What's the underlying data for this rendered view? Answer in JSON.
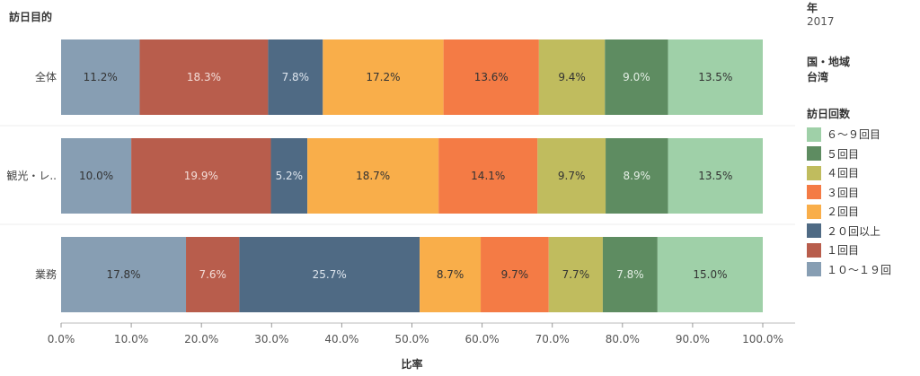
{
  "row_axis_title": "訪日目的",
  "filters": [
    {
      "title": "年",
      "value": "2017"
    },
    {
      "title": "国・地域",
      "value": "台湾"
    }
  ],
  "legend": {
    "title": "訪日回数",
    "items": [
      {
        "label": "６～９回目",
        "color": "#9fd0a8"
      },
      {
        "label": "５回目",
        "color": "#5e8c61"
      },
      {
        "label": "４回目",
        "color": "#c0bc5e"
      },
      {
        "label": "３回目",
        "color": "#f47b45"
      },
      {
        "label": "２回目",
        "color": "#f9ae4a"
      },
      {
        "label": "２０回以上",
        "color": "#4f6a84"
      },
      {
        "label": "１回目",
        "color": "#b85d4c"
      },
      {
        "label": "１０～１９回",
        "color": "#879eb3"
      }
    ]
  },
  "chart_data": {
    "type": "bar",
    "orientation": "horizontal",
    "stacked": true,
    "xlabel": "比率",
    "xlim": [
      0,
      100
    ],
    "x_ticks": [
      "0.0%",
      "10.0%",
      "20.0%",
      "30.0%",
      "40.0%",
      "50.0%",
      "60.0%",
      "70.0%",
      "80.0%",
      "90.0%",
      "100.0%"
    ],
    "categories": [
      "全体",
      "観光・レ..",
      "業務"
    ],
    "series": [
      {
        "name": "１０～１９回",
        "color": "#879eb3",
        "label_color": "#333333",
        "values": [
          11.2,
          10.0,
          17.8
        ]
      },
      {
        "name": "１回目",
        "color": "#b85d4c",
        "label_color": "#f3ddd8",
        "values": [
          18.3,
          19.9,
          7.6
        ]
      },
      {
        "name": "２０回以上",
        "color": "#4f6a84",
        "label_color": "#dfe6ee",
        "values": [
          7.8,
          5.2,
          25.7
        ]
      },
      {
        "name": "２回目",
        "color": "#f9ae4a",
        "label_color": "#333333",
        "values": [
          17.2,
          18.7,
          8.7
        ]
      },
      {
        "name": "３回目",
        "color": "#f47b45",
        "label_color": "#333333",
        "values": [
          13.6,
          14.1,
          9.7
        ]
      },
      {
        "name": "４回目",
        "color": "#c0bc5e",
        "label_color": "#333333",
        "values": [
          9.4,
          9.7,
          7.7
        ]
      },
      {
        "name": "５回目",
        "color": "#5e8c61",
        "label_color": "#e3eee4",
        "values": [
          9.0,
          8.9,
          7.8
        ]
      },
      {
        "name": "６～９回目",
        "color": "#9fd0a8",
        "label_color": "#333333",
        "values": [
          13.5,
          13.5,
          15.0
        ]
      }
    ]
  }
}
